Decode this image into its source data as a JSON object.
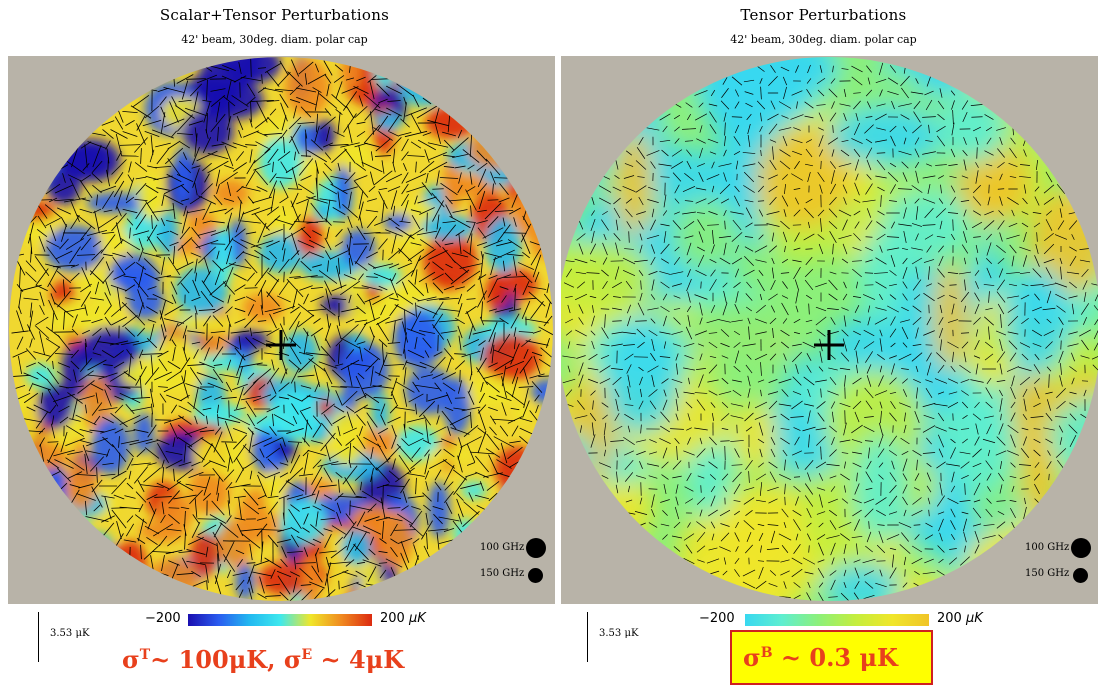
{
  "chart_data": [
    {
      "type": "heatmap",
      "title": "Scalar+Tensor Perturbations",
      "subtitle": "42' beam, 30deg. diam. polar cap",
      "colorbar": {
        "min": -200,
        "max": 200,
        "min_label": "−200",
        "max_label": "200",
        "unit": "μK"
      },
      "scale_label": "3.53 μK",
      "beam_labels": [
        "100 GHz",
        "150 GHz"
      ],
      "annotation": {
        "t_symbol": "σ",
        "t_sup": "T",
        "t_text": "~ 100μK, ",
        "e_symbol": "σ",
        "e_sup": "E",
        "e_text": " ~ 4μK"
      },
      "palette": [
        "#1a0fb0",
        "#2a5cf0",
        "#22b8f0",
        "#3ee8ee",
        "#f0e62a",
        "#f08a20",
        "#dc2a10"
      ],
      "background": "#b8b3a8"
    },
    {
      "type": "heatmap",
      "title": "Tensor Perturbations",
      "subtitle": "42' beam, 30deg. diam. polar cap",
      "colorbar": {
        "min": -200,
        "max": 200,
        "min_label": "−200",
        "max_label": "200",
        "unit": "μK"
      },
      "scale_label": "3.53 μK",
      "beam_labels": [
        "100 GHz",
        "150 GHz"
      ],
      "annotation": {
        "symbol": "σ",
        "sup": "B",
        "text": " ~ 0.3 μK"
      },
      "palette": [
        "#38d8f0",
        "#5eeed0",
        "#8cf07a",
        "#c4ee3e",
        "#f0e62a",
        "#f0c428"
      ],
      "background": "#b8b3a8"
    }
  ]
}
